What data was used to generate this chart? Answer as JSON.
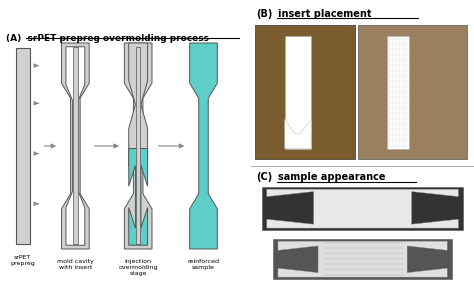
{
  "title_A": "(A)  srPET prepreg overmolding process",
  "label_B": "(B)",
  "label_C": "(C)",
  "heading_B": "insert placement",
  "heading_C": "sample appearance",
  "labels": [
    "srPET\nprepreg",
    "mold cavity\nwith insert",
    "injection\novermolding\nstage",
    "reinforced\nsample"
  ],
  "bg_color": "#ffffff",
  "light_gray": "#d0d0d0",
  "teal": "#5ecec8",
  "dark_gray": "#888888",
  "outline_color": "#555555",
  "arrow_color": "#cccccc",
  "figure_bg": "#f2f2f2"
}
